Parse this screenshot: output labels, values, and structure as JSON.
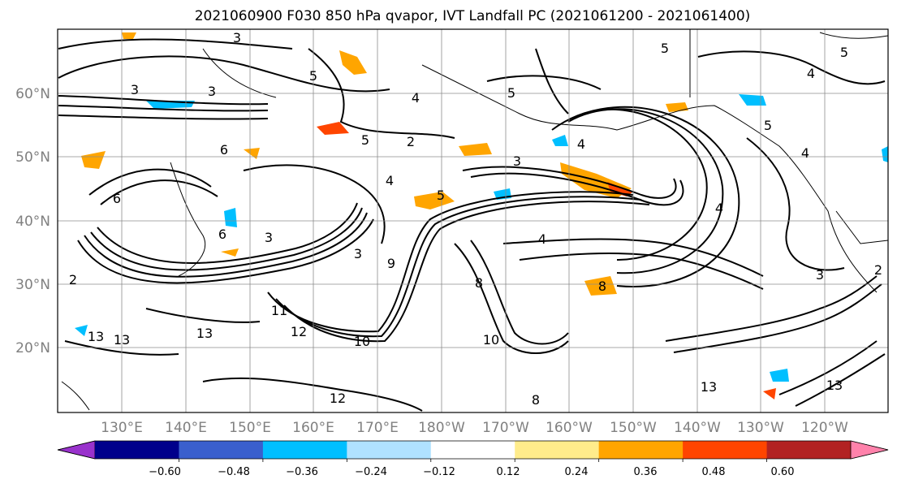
{
  "title": "2021060900 F030 850 hPa qvapor, IVT Landfall PC (2021061200 - 2021061400)",
  "map": {
    "projection": "PlateCarree",
    "lat_labels": [
      "20°N",
      "30°N",
      "40°N",
      "50°N",
      "60°N"
    ],
    "lon_labels": [
      "130°E",
      "140°E",
      "150°E",
      "160°E",
      "170°E",
      "180°W",
      "170°W",
      "160°W",
      "150°W",
      "140°W",
      "130°W",
      "120°W"
    ],
    "gridlines": true,
    "contour_color": "#000000",
    "contour_labels": [
      "3",
      "3",
      "3",
      "3",
      "5",
      "5",
      "5",
      "5",
      "4",
      "4",
      "4",
      "5",
      "6",
      "6",
      "6",
      "3",
      "3",
      "4",
      "4",
      "2",
      "8",
      "8",
      "10",
      "10",
      "11",
      "12",
      "12",
      "13",
      "13",
      "13",
      "13",
      "13",
      "2",
      "5",
      "4",
      "8",
      "9",
      "4",
      "5",
      "3",
      "2"
    ]
  },
  "colorbar": {
    "colors": [
      "#9932CC",
      "#00008B",
      "#3A5FCD",
      "#00BFFF",
      "#B0E2FF",
      "#FFFFFF",
      "#FFEC8B",
      "#FFA500",
      "#FF4500",
      "#B22222",
      "#FF82AB"
    ],
    "tick_labels": [
      "−0.60",
      "−0.48",
      "−0.36",
      "−0.24",
      "−0.12",
      "0.12",
      "0.24",
      "0.36",
      "0.48",
      "0.60"
    ],
    "extend": "both"
  }
}
